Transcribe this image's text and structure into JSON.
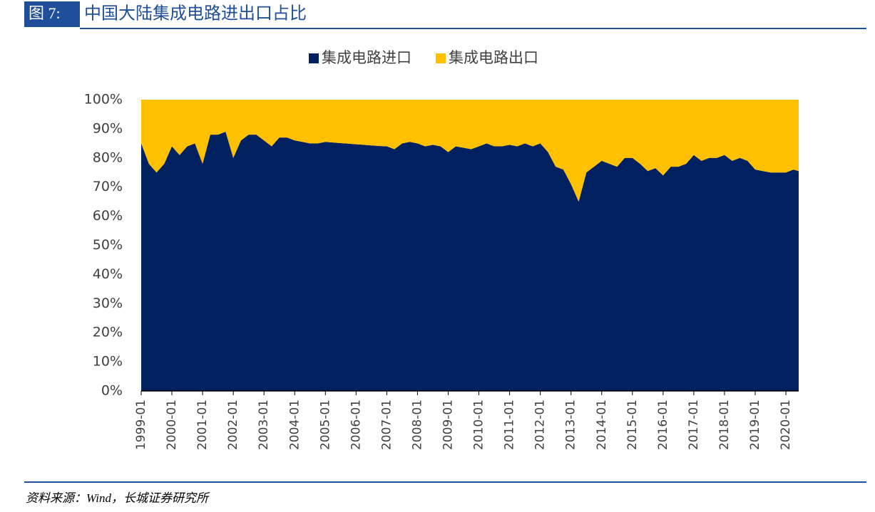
{
  "header": {
    "label": "图 7:",
    "title": "中国大陆集成电路进出口占比"
  },
  "chart_data": {
    "type": "stacked_area",
    "x": [
      "1999-01",
      "1999-04",
      "1999-07",
      "1999-10",
      "2000-01",
      "2000-04",
      "2000-07",
      "2000-10",
      "2001-01",
      "2001-04",
      "2001-07",
      "2001-10",
      "2002-01",
      "2002-04",
      "2002-07",
      "2002-10",
      "2003-01",
      "2003-04",
      "2003-07",
      "2003-10",
      "2004-01",
      "2004-04",
      "2004-07",
      "2004-10",
      "2005-01",
      "2005-04",
      "2005-07",
      "2005-10",
      "2006-01",
      "2006-04",
      "2006-07",
      "2006-10",
      "2007-01",
      "2007-04",
      "2007-07",
      "2007-10",
      "2008-01",
      "2008-04",
      "2008-07",
      "2008-10",
      "2009-01",
      "2009-04",
      "2009-07",
      "2009-10",
      "2010-01",
      "2010-04",
      "2010-07",
      "2010-10",
      "2011-01",
      "2011-04",
      "2011-07",
      "2011-10",
      "2012-01",
      "2012-04",
      "2012-07",
      "2012-10",
      "2013-01",
      "2013-04",
      "2013-07",
      "2013-10",
      "2014-01",
      "2014-04",
      "2014-07",
      "2014-10",
      "2015-01",
      "2015-04",
      "2015-07",
      "2015-10",
      "2016-01",
      "2016-04",
      "2016-07",
      "2016-10",
      "2017-01",
      "2017-04",
      "2017-07",
      "2017-10",
      "2018-01",
      "2018-04",
      "2018-07",
      "2018-10",
      "2019-01",
      "2019-04",
      "2019-07",
      "2019-10",
      "2020-01",
      "2020-04",
      "2020-06"
    ],
    "series": [
      {
        "name": "集成电路进口",
        "color": "#002060",
        "values": [
          85,
          78,
          75,
          78,
          84,
          81,
          84,
          85,
          78,
          88,
          88,
          89,
          80,
          86,
          88,
          88,
          86,
          84,
          87,
          87,
          86,
          85.5,
          85,
          85,
          85.5,
          85.3,
          85.1,
          84.9,
          84.7,
          84.5,
          84.3,
          84.1,
          84,
          83,
          85,
          85.5,
          85,
          84,
          84.5,
          84,
          82,
          84,
          83.5,
          83,
          84,
          85,
          84,
          84,
          84.5,
          84,
          85,
          84,
          85,
          82,
          77,
          76,
          71,
          65,
          75,
          77,
          79,
          78,
          77,
          80,
          80,
          78,
          75.5,
          76.5,
          74,
          77,
          77,
          78,
          81,
          79,
          80,
          80,
          81,
          79,
          80,
          79,
          76,
          75.5,
          75,
          75,
          75,
          76,
          75.5
        ]
      },
      {
        "name": "集成电路出口",
        "color": "#FFC000",
        "values": [
          15,
          22,
          25,
          22,
          16,
          19,
          16,
          15,
          22,
          12,
          12,
          11,
          20,
          14,
          12,
          12,
          14,
          16,
          13,
          13,
          14,
          14.5,
          15,
          15,
          14.5,
          14.7,
          14.9,
          15.1,
          15.3,
          15.5,
          15.7,
          15.9,
          16,
          17,
          15,
          14.5,
          15,
          16,
          15.5,
          16,
          18,
          16,
          16.5,
          17,
          16,
          15,
          16,
          16,
          15.5,
          16,
          15,
          16,
          15,
          18,
          23,
          24,
          29,
          35,
          25,
          23,
          21,
          22,
          23,
          20,
          20,
          22,
          24.5,
          23.5,
          26,
          23,
          23,
          22,
          19,
          21,
          20,
          20,
          19,
          21,
          20,
          21,
          24,
          24.5,
          25,
          25,
          25,
          24,
          24.5
        ]
      }
    ],
    "xlim": [
      "1999-01",
      "2020-06"
    ],
    "xticks": [
      "1999-01",
      "2000-01",
      "2001-01",
      "2002-01",
      "2003-01",
      "2004-01",
      "2005-01",
      "2006-01",
      "2007-01",
      "2008-01",
      "2009-01",
      "2010-01",
      "2011-01",
      "2012-01",
      "2013-01",
      "2014-01",
      "2015-01",
      "2016-01",
      "2017-01",
      "2018-01",
      "2019-01",
      "2020-01"
    ],
    "ylim": [
      0,
      100
    ],
    "yticks": [
      {
        "value": 0,
        "label": "0%"
      },
      {
        "value": 10,
        "label": "10%"
      },
      {
        "value": 20,
        "label": "20%"
      },
      {
        "value": 30,
        "label": "30%"
      },
      {
        "value": 40,
        "label": "40%"
      },
      {
        "value": 50,
        "label": "50%"
      },
      {
        "value": 60,
        "label": "60%"
      },
      {
        "value": 70,
        "label": "70%"
      },
      {
        "value": 80,
        "label": "80%"
      },
      {
        "value": 90,
        "label": "90%"
      },
      {
        "value": 100,
        "label": "100%"
      }
    ],
    "legend": "top"
  },
  "source": "资料来源：Wind，长城证券研究所"
}
